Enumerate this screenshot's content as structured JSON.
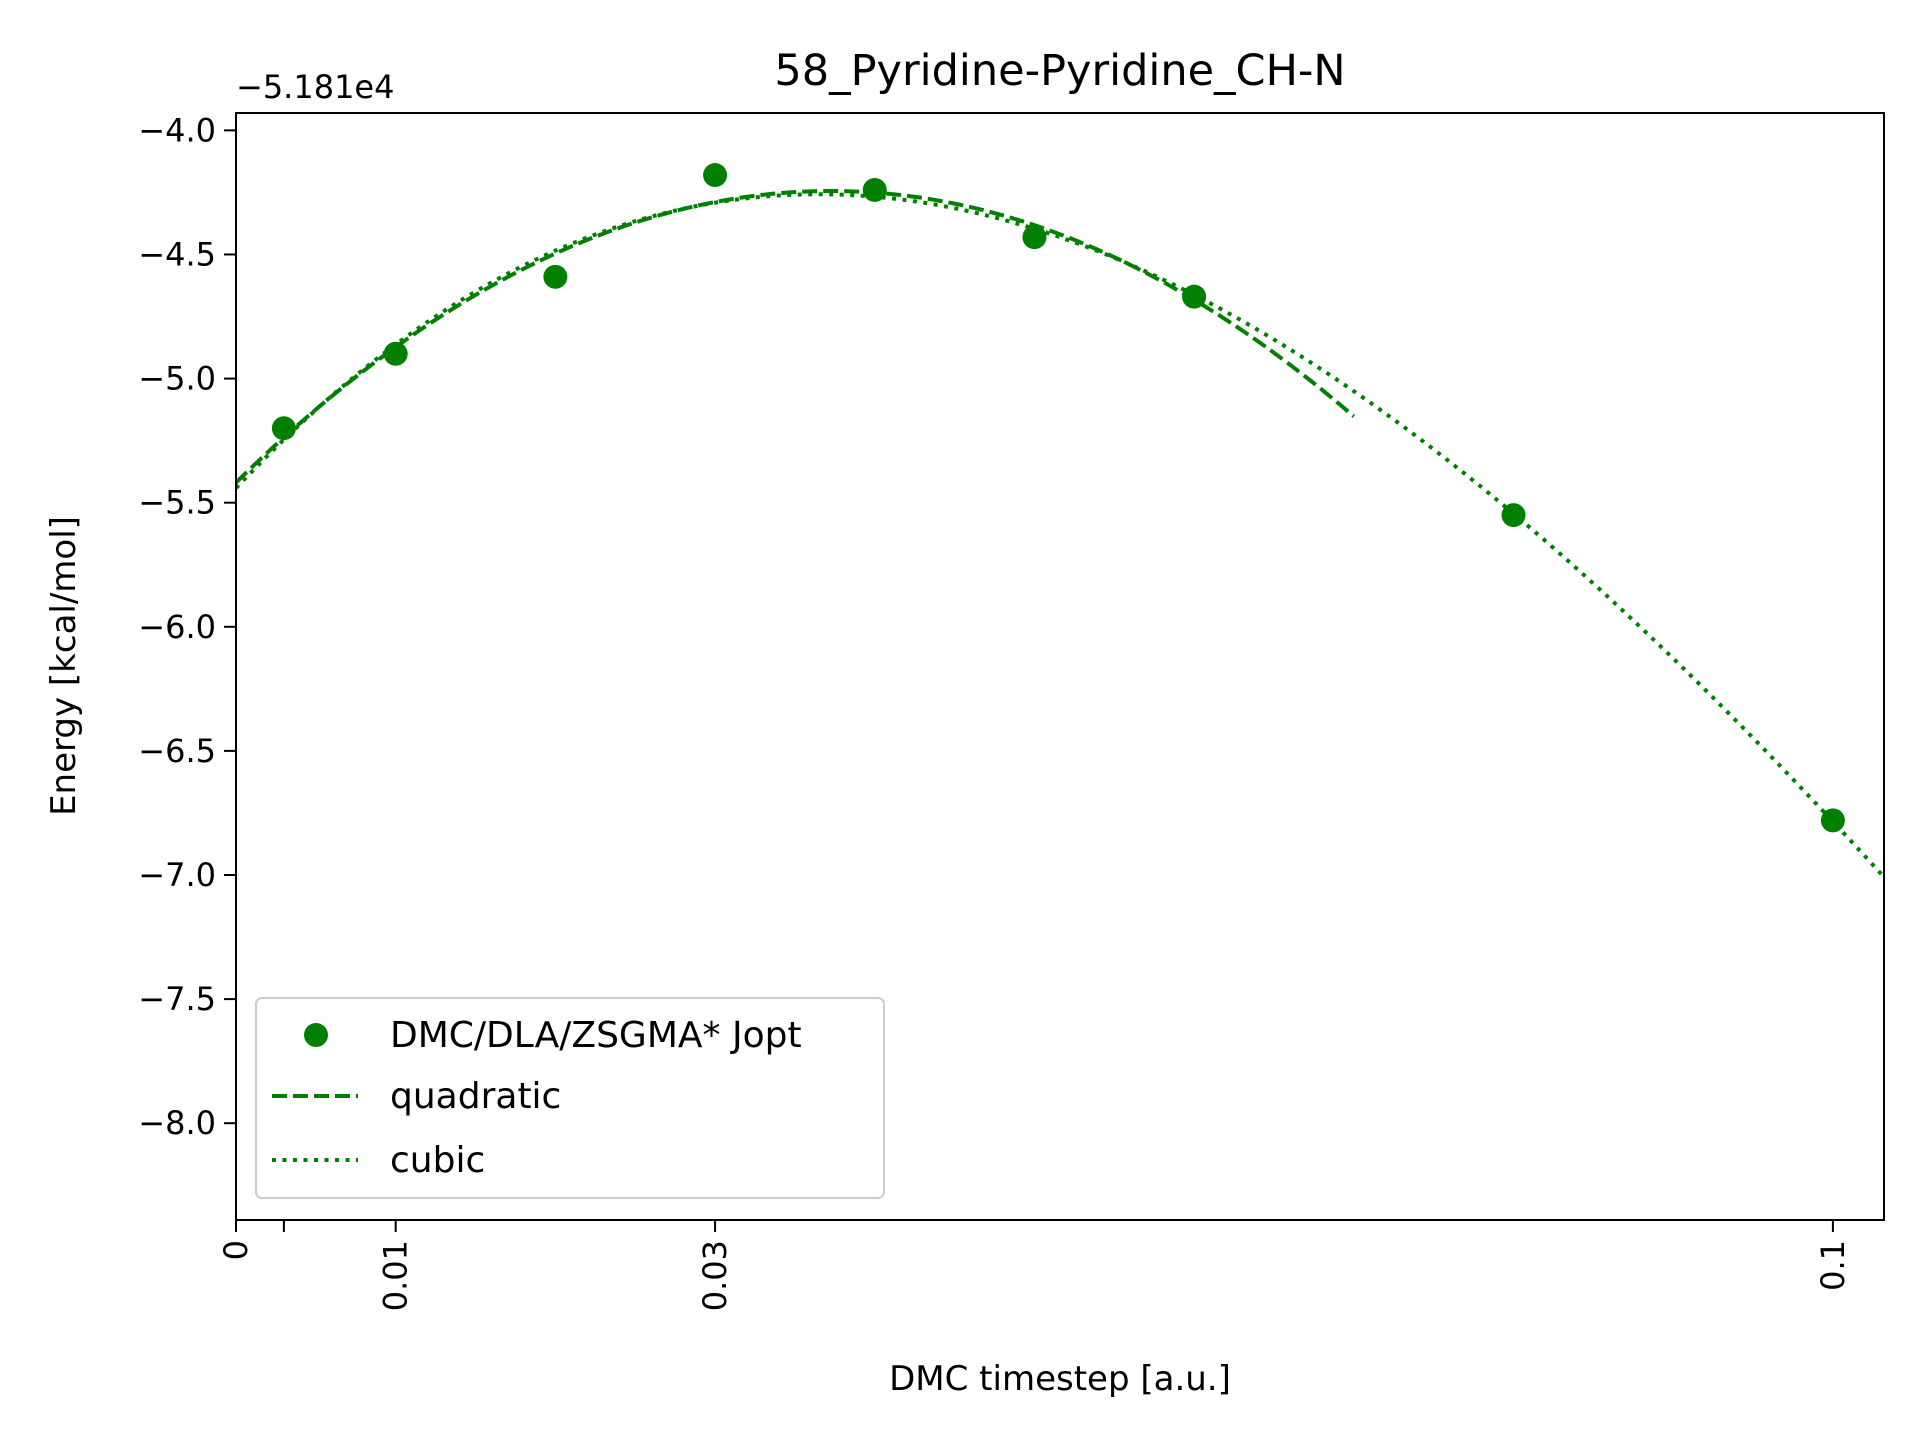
{
  "chart_data": {
    "type": "scatter",
    "title": "58_Pyridine-Pyridine_CH-N",
    "xlabel": "DMC timestep [a.u.]",
    "ylabel": "Energy [kcal/mol]",
    "offset_text": "−5.181e4",
    "xlim": [
      0,
      0.1032
    ],
    "ylim": [
      -8.39,
      -3.93
    ],
    "xticks": [
      {
        "value": 0,
        "label": "0"
      },
      {
        "value": 0.003,
        "label": ""
      },
      {
        "value": 0.01,
        "label": "0.01"
      },
      {
        "value": 0.03,
        "label": "0.03"
      },
      {
        "value": 0.1,
        "label": "0.1"
      }
    ],
    "yticks": [
      {
        "value": -4.0,
        "label": "−4.0"
      },
      {
        "value": -4.5,
        "label": "−4.5"
      },
      {
        "value": -5.0,
        "label": "−5.0"
      },
      {
        "value": -5.5,
        "label": "−5.5"
      },
      {
        "value": -6.0,
        "label": "−6.0"
      },
      {
        "value": -6.5,
        "label": "−6.5"
      },
      {
        "value": -7.0,
        "label": "−7.0"
      },
      {
        "value": -7.5,
        "label": "−7.5"
      },
      {
        "value": -8.0,
        "label": "−8.0"
      }
    ],
    "color": "#008000",
    "series": [
      {
        "name": "DMC/DLA/ZSGMA* Jopt",
        "style": "markers",
        "x": [
          0.003,
          0.01,
          0.02,
          0.03,
          0.04,
          0.05,
          0.06,
          0.08,
          0.1
        ],
        "y": [
          -5.2,
          -4.9,
          -4.59,
          -4.18,
          -4.24,
          -4.43,
          -4.67,
          -5.55,
          -6.78
        ]
      },
      {
        "name": "quadratic",
        "style": "dashed",
        "fit": "quadratic",
        "x_range": [
          0,
          0.07
        ],
        "x": [
          0.003,
          0.01,
          0.02,
          0.03,
          0.04,
          0.05,
          0.06
        ]
      },
      {
        "name": "cubic",
        "style": "dotted",
        "fit": "cubic",
        "x_range": [
          0,
          0.1032
        ],
        "x": [
          0.003,
          0.01,
          0.02,
          0.03,
          0.04,
          0.05,
          0.06,
          0.08,
          0.1
        ]
      }
    ],
    "legend": {
      "placement": "lower-left"
    }
  }
}
